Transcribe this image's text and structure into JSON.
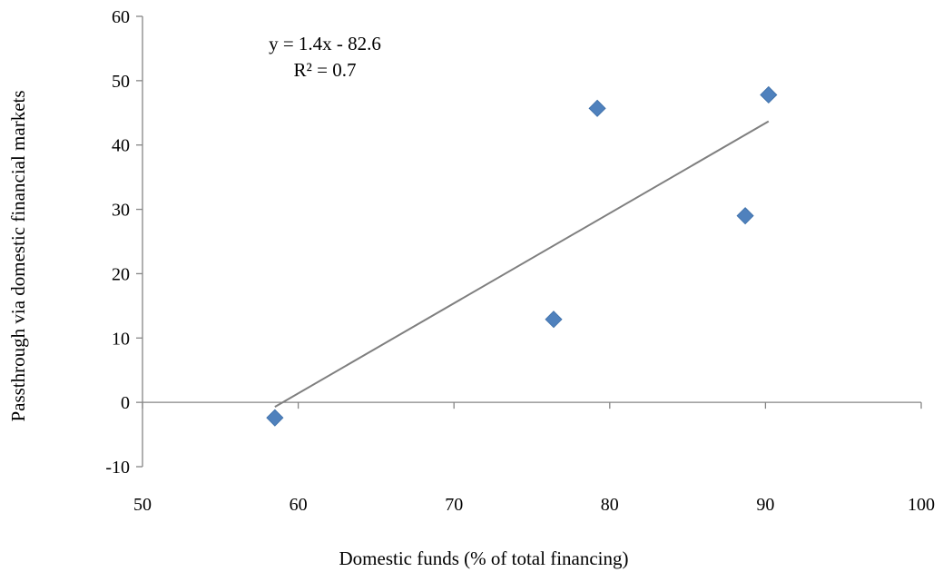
{
  "chart_data": {
    "type": "scatter",
    "title": "",
    "xlabel": "Domestic funds (% of total financing)",
    "ylabel": "Passthrough via domestic financial markets",
    "xlim": [
      50,
      100
    ],
    "ylim": [
      -10,
      60
    ],
    "x_ticks": [
      50,
      60,
      70,
      80,
      90,
      100
    ],
    "y_ticks": [
      -10,
      0,
      10,
      20,
      30,
      40,
      50,
      60
    ],
    "grid": false,
    "legend": "none",
    "marker": "diamond",
    "colors": {
      "marker": "#4f81bd",
      "marker_edge": "#3c6ea8",
      "trendline": "#7f7f7f",
      "axis": "#868686"
    },
    "series": [
      {
        "x": [
          58.5,
          76.4,
          79.2,
          88.7,
          90.2
        ],
        "y": [
          -2.4,
          12.9,
          45.7,
          29.0,
          47.8
        ]
      }
    ],
    "trendline": {
      "slope": 1.4,
      "intercept": -82.6,
      "x_range": [
        58.5,
        90.2
      ],
      "equation": "y = 1.4x - 82.6",
      "r_squared": "R² = 0.7"
    }
  }
}
